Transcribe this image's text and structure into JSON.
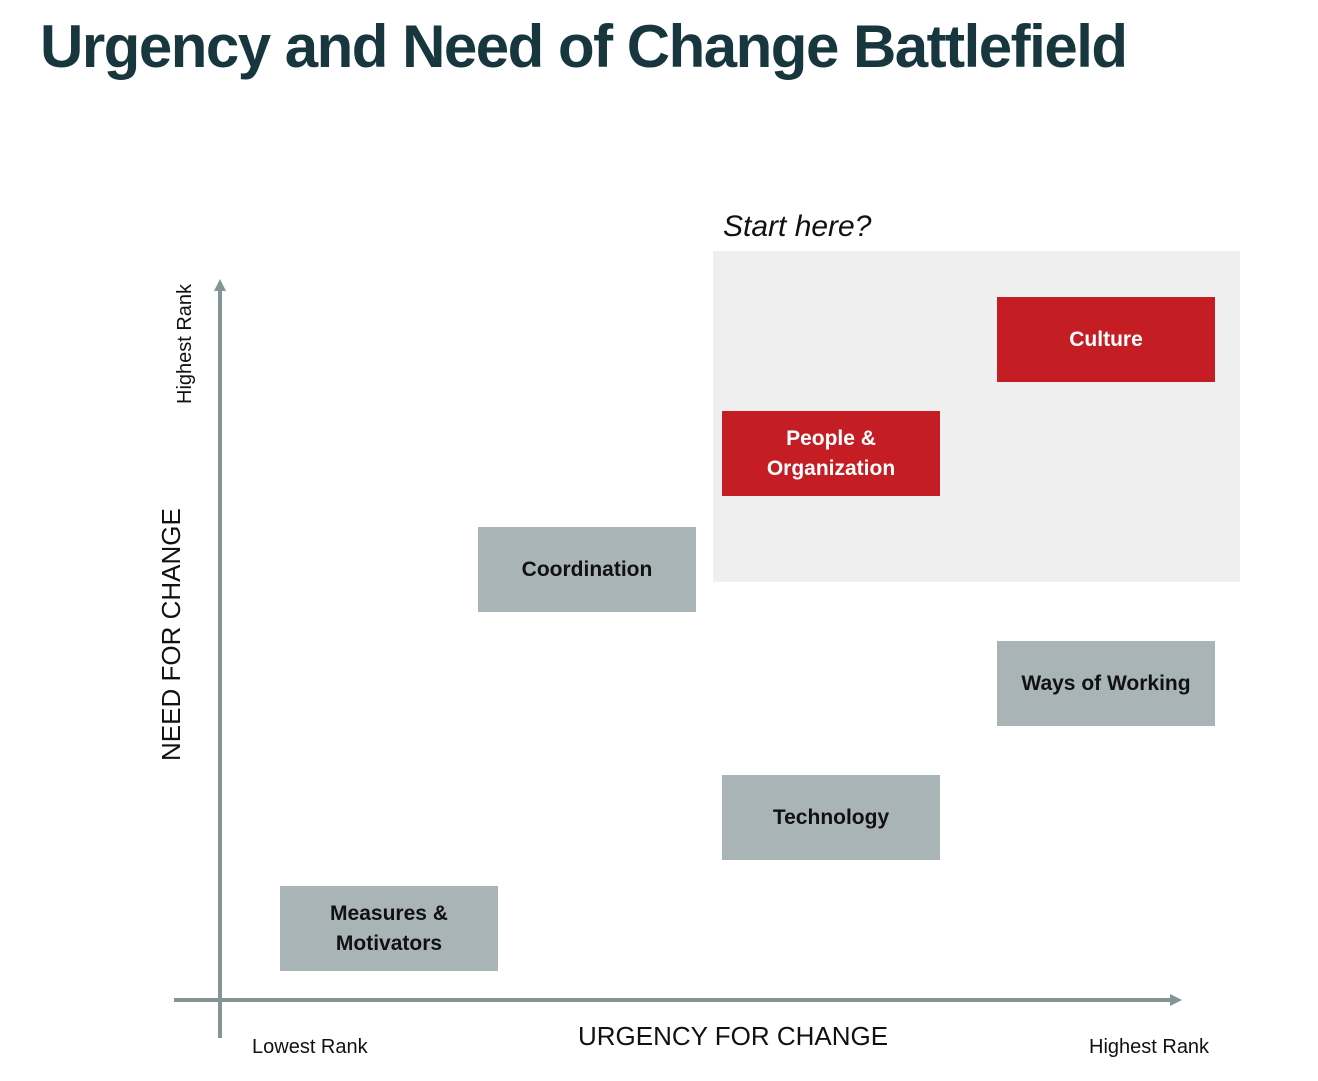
{
  "title": "Urgency and Need of Change Battlefield",
  "highlight": {
    "label": "Start here?"
  },
  "y_axis": {
    "label": "NEED FOR CHANGE",
    "top_label": "Highest Rank"
  },
  "x_axis": {
    "label": "URGENCY FOR CHANGE",
    "left_label": "Lowest Rank",
    "right_label": "Highest Rank"
  },
  "items": [
    {
      "label": "Culture",
      "color": "#c41e24"
    },
    {
      "label": "People & Organization",
      "color": "#c41e24"
    },
    {
      "label": "Coordination",
      "color": "#a8b4b6"
    },
    {
      "label": "Ways of Working",
      "color": "#a8b4b6"
    },
    {
      "label": "Technology",
      "color": "#a8b4b6"
    },
    {
      "label": "Measures & Motivators",
      "color": "#a8b4b6"
    }
  ],
  "colors": {
    "title": "#17363d",
    "highlight": "#c41e24",
    "neutral": "#a8b4b6",
    "axis": "#849596"
  }
}
